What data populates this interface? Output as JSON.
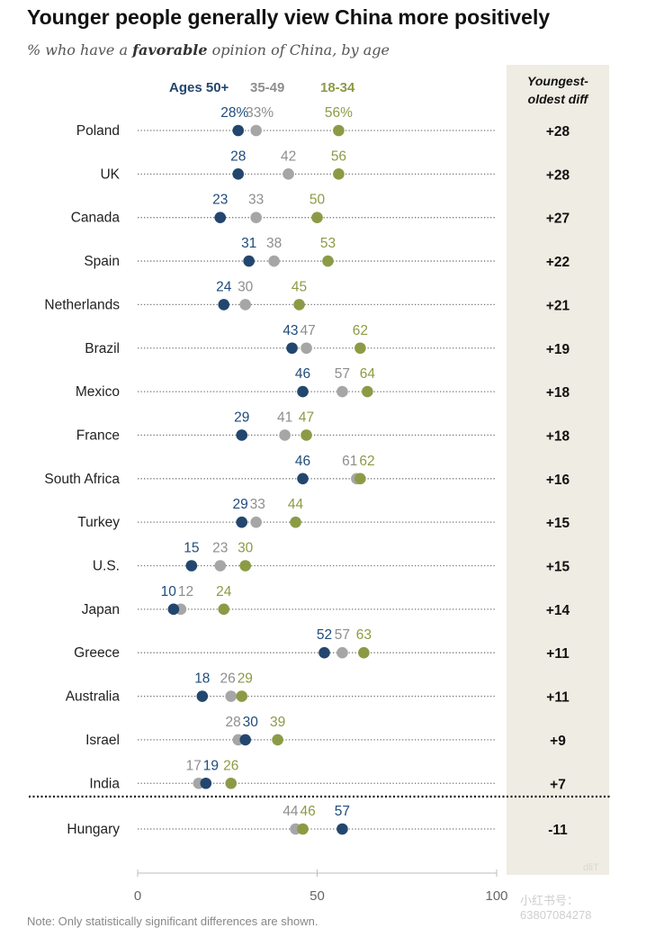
{
  "chart_data": {
    "type": "dot-plot",
    "title": "Younger people generally view China more positively",
    "subtitle_prefix": "% who have a ",
    "subtitle_emphasis": "favorable",
    "subtitle_suffix": " opinion of China, by age",
    "legend": [
      {
        "label": "Ages 50+",
        "color": "#23466e"
      },
      {
        "label": "35-49",
        "color": "#a6a6a6"
      },
      {
        "label": "18-34",
        "color": "#8b9b45"
      }
    ],
    "diff_header_line1": "Youngest-",
    "diff_header_line2": "oldest diff",
    "xlim": [
      0,
      100
    ],
    "xticks": [
      "0",
      "50",
      "100"
    ],
    "countries": [
      {
        "name": "Poland",
        "old": 28,
        "mid": 33,
        "young": 56,
        "old_label": "28%",
        "mid_label": "33%",
        "young_label": "56%",
        "diff": "+28"
      },
      {
        "name": "UK",
        "old": 28,
        "mid": 42,
        "young": 56,
        "old_label": "28",
        "mid_label": "42",
        "young_label": "56",
        "diff": "+28"
      },
      {
        "name": "Canada",
        "old": 23,
        "mid": 33,
        "young": 50,
        "old_label": "23",
        "mid_label": "33",
        "young_label": "50",
        "diff": "+27"
      },
      {
        "name": "Spain",
        "old": 31,
        "mid": 38,
        "young": 53,
        "old_label": "31",
        "mid_label": "38",
        "young_label": "53",
        "diff": "+22"
      },
      {
        "name": "Netherlands",
        "old": 24,
        "mid": 30,
        "young": 45,
        "old_label": "24",
        "mid_label": "30",
        "young_label": "45",
        "diff": "+21"
      },
      {
        "name": "Brazil",
        "old": 43,
        "mid": 47,
        "young": 62,
        "old_label": "43",
        "mid_label": "47",
        "young_label": "62",
        "diff": "+19"
      },
      {
        "name": "Mexico",
        "old": 46,
        "mid": 57,
        "young": 64,
        "old_label": "46",
        "mid_label": "57",
        "young_label": "64",
        "diff": "+18"
      },
      {
        "name": "France",
        "old": 29,
        "mid": 41,
        "young": 47,
        "old_label": "29",
        "mid_label": "41",
        "young_label": "47",
        "diff": "+18"
      },
      {
        "name": "South Africa",
        "old": 46,
        "mid": 61,
        "young": 62,
        "old_label": "46",
        "mid_label": "61",
        "young_label": "62",
        "diff": "+16"
      },
      {
        "name": "Turkey",
        "old": 29,
        "mid": 33,
        "young": 44,
        "old_label": "29",
        "mid_label": "33",
        "young_label": "44",
        "diff": "+15"
      },
      {
        "name": "U.S.",
        "old": 15,
        "mid": 23,
        "young": 30,
        "old_label": "15",
        "mid_label": "23",
        "young_label": "30",
        "diff": "+15"
      },
      {
        "name": "Japan",
        "old": 10,
        "mid": 12,
        "young": 24,
        "old_label": "10",
        "mid_label": "12",
        "young_label": "24",
        "diff": "+14"
      },
      {
        "name": "Greece",
        "old": 52,
        "mid": 57,
        "young": 63,
        "old_label": "52",
        "mid_label": "57",
        "young_label": "63",
        "diff": "+11"
      },
      {
        "name": "Australia",
        "old": 18,
        "mid": 26,
        "young": 29,
        "old_label": "18",
        "mid_label": "26",
        "young_label": "29",
        "diff": "+11"
      },
      {
        "name": "Israel",
        "old": 30,
        "mid": 28,
        "young": 39,
        "old_label": "30",
        "mid_label": "28",
        "young_label": "39",
        "diff": "+9"
      },
      {
        "name": "India",
        "old": 19,
        "mid": 17,
        "young": 26,
        "old_label": "19",
        "mid_label": "17",
        "young_label": "26",
        "diff": "+7"
      },
      {
        "name": "Hungary",
        "old": 57,
        "mid": 44,
        "young": 46,
        "old_label": "57",
        "mid_label": "44",
        "young_label": "46",
        "diff": "-11"
      }
    ]
  },
  "watermark_badge": "dliT",
  "watermark_text": "小红书号：63807084278",
  "note": "Note: Only statistically significant differences are shown."
}
